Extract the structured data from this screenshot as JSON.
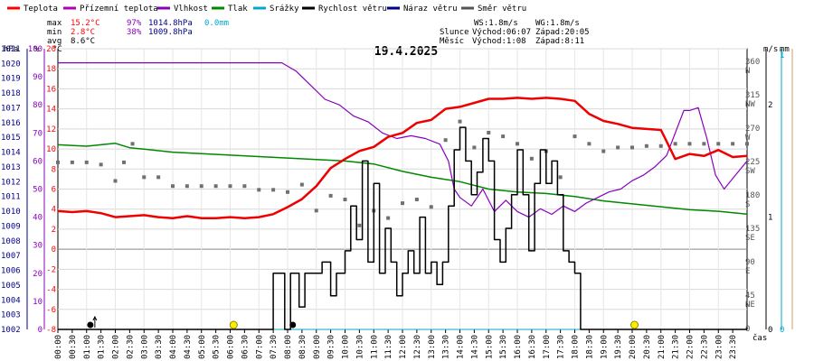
{
  "chart_data": {
    "type": "line",
    "title": "19.4.2025",
    "legend": [
      {
        "name": "Teplota",
        "color": "#ff0000"
      },
      {
        "name": "Přízemní teplota",
        "color": "#b000b0"
      },
      {
        "name": "Vlhkost",
        "color": "#8800bb"
      },
      {
        "name": "Tlak",
        "color": "#008800"
      },
      {
        "name": "Srážky",
        "color": "#00aacc"
      },
      {
        "name": "Rychlost větru",
        "color": "#000000"
      },
      {
        "name": "Náraz větru",
        "color": "#000088"
      },
      {
        "name": "Směr větru",
        "color": "#555555"
      }
    ],
    "stats": {
      "rows": [
        {
          "label": "max",
          "temp": "15.2°C",
          "hum": "97%",
          "press": "1014.8hPa",
          "rain": "0.0mm"
        },
        {
          "label": "min",
          "temp": "2.8°C",
          "hum": "38%",
          "press": "1009.8hPa"
        },
        {
          "label": "avg",
          "temp": "8.6°C"
        }
      ],
      "ws": "WS:1.8m/s",
      "wg": "WG:1.8m/s",
      "sun": {
        "label": "Slunce",
        "rise": "Východ:06:07",
        "set": "Západ:20:05"
      },
      "moon": {
        "label": "Měsíc",
        "rise": "Východ:1:08",
        "set": "Západ:8:11"
      }
    },
    "axes": {
      "hpa": {
        "unit": "hPa",
        "min": 1002,
        "max": 1021,
        "ticks": [
          "1021",
          "1020",
          "1019",
          "1018",
          "1017",
          "1016",
          "1015",
          "1014",
          "1013",
          "1012",
          "1011",
          "1010",
          "1009",
          "1008",
          "1007",
          "1006",
          "1005",
          "1004",
          "1003",
          "1002"
        ]
      },
      "pct": {
        "unit": "%",
        "min": 0,
        "max": 100,
        "ticks": [
          "100",
          "90",
          "80",
          "70",
          "60",
          "50",
          "40",
          "30",
          "20",
          "10",
          "0"
        ]
      },
      "temp": {
        "unit": "°C",
        "min": -8,
        "max": 20,
        "ticks": [
          "20",
          "18",
          "16",
          "14",
          "12",
          "10",
          "8",
          "6",
          "4",
          "2",
          "0",
          "-2",
          "-4",
          "-6",
          "-8"
        ]
      },
      "dir": {
        "unit": "°",
        "ticks": [
          {
            "deg": 360,
            "label": "N"
          },
          {
            "deg": 315,
            "label": "NW"
          },
          {
            "deg": 270,
            "label": "W"
          },
          {
            "deg": 225,
            "label": "SW"
          },
          {
            "deg": 180,
            "label": "S"
          },
          {
            "deg": 135,
            "label": "SE"
          },
          {
            "deg": 90,
            "label": "E"
          },
          {
            "deg": 45,
            "label": "NE"
          },
          {
            "deg": 0,
            "label": ""
          }
        ]
      },
      "ms": {
        "unit": "m/s",
        "min": 0,
        "max": 2.5,
        "ticks": [
          "2",
          "1",
          "0"
        ]
      },
      "mm": {
        "unit": "mm",
        "ticks": [
          "1",
          "0"
        ]
      },
      "x": {
        "label": "čas",
        "ticks": [
          "00:00",
          "00:30",
          "01:00",
          "01:30",
          "02:00",
          "02:30",
          "03:00",
          "03:30",
          "04:00",
          "04:30",
          "05:00",
          "05:30",
          "06:00",
          "06:30",
          "07:00",
          "07:30",
          "08:00",
          "08:30",
          "09:00",
          "09:30",
          "10:00",
          "10:30",
          "11:00",
          "11:30",
          "12:00",
          "12:30",
          "13:00",
          "13:30",
          "14:00",
          "14:30",
          "15:00",
          "15:30",
          "16:00",
          "16:30",
          "17:00",
          "17:30",
          "18:00",
          "18:30",
          "19:00",
          "19:30",
          "20:00",
          "20:30",
          "21:00",
          "21:30",
          "22:00",
          "22:30",
          "23:00",
          "23:30"
        ]
      }
    },
    "series": {
      "temperature_c": [
        [
          0,
          3.8
        ],
        [
          0.5,
          3.7
        ],
        [
          1,
          3.8
        ],
        [
          1.5,
          3.6
        ],
        [
          2,
          3.2
        ],
        [
          2.5,
          3.3
        ],
        [
          3,
          3.4
        ],
        [
          3.5,
          3.2
        ],
        [
          4,
          3.1
        ],
        [
          4.5,
          3.3
        ],
        [
          5,
          3.1
        ],
        [
          5.5,
          3.1
        ],
        [
          6,
          3.2
        ],
        [
          6.5,
          3.1
        ],
        [
          7,
          3.2
        ],
        [
          7.5,
          3.5
        ],
        [
          8,
          4.2
        ],
        [
          8.5,
          5.0
        ],
        [
          9,
          6.3
        ],
        [
          9.5,
          8.1
        ],
        [
          10,
          9.0
        ],
        [
          10.5,
          9.8
        ],
        [
          11,
          10.2
        ],
        [
          11.5,
          11.2
        ],
        [
          12,
          11.6
        ],
        [
          12.5,
          12.6
        ],
        [
          13,
          12.9
        ],
        [
          13.5,
          14.0
        ],
        [
          14,
          14.2
        ],
        [
          14.5,
          14.6
        ],
        [
          15,
          15.0
        ],
        [
          15.5,
          15.0
        ],
        [
          16,
          15.1
        ],
        [
          16.5,
          15.0
        ],
        [
          17,
          15.1
        ],
        [
          17.5,
          15.0
        ],
        [
          18,
          14.8
        ],
        [
          18.5,
          13.5
        ],
        [
          19,
          12.8
        ],
        [
          19.5,
          12.5
        ],
        [
          20,
          12.1
        ],
        [
          20.5,
          12.0
        ],
        [
          21,
          11.9
        ],
        [
          21.5,
          9.0
        ],
        [
          22,
          9.5
        ],
        [
          22.5,
          9.3
        ],
        [
          23,
          9.9
        ],
        [
          23.5,
          9.2
        ],
        [
          24,
          9.3
        ]
      ],
      "humidity_pct": [
        [
          0,
          95
        ],
        [
          1,
          95
        ],
        [
          2,
          95
        ],
        [
          3,
          95
        ],
        [
          4,
          95
        ],
        [
          5,
          95
        ],
        [
          6,
          95
        ],
        [
          7,
          95
        ],
        [
          7.8,
          95
        ],
        [
          8.3,
          92
        ],
        [
          8.8,
          87
        ],
        [
          9.3,
          82
        ],
        [
          9.8,
          80
        ],
        [
          10.3,
          76
        ],
        [
          10.8,
          74
        ],
        [
          11.3,
          70
        ],
        [
          11.8,
          68
        ],
        [
          12.3,
          69
        ],
        [
          12.8,
          68
        ],
        [
          13.3,
          66
        ],
        [
          13.6,
          60
        ],
        [
          13.8,
          50
        ],
        [
          14,
          47
        ],
        [
          14.4,
          44
        ],
        [
          14.8,
          50
        ],
        [
          15.2,
          42
        ],
        [
          15.6,
          46
        ],
        [
          16,
          42
        ],
        [
          16.4,
          40
        ],
        [
          16.8,
          43
        ],
        [
          17.2,
          41
        ],
        [
          17.6,
          44
        ],
        [
          18,
          42
        ],
        [
          18.4,
          45
        ],
        [
          18.8,
          47
        ],
        [
          19.2,
          49
        ],
        [
          19.6,
          50
        ],
        [
          20,
          53
        ],
        [
          20.4,
          55
        ],
        [
          20.8,
          58
        ],
        [
          21.2,
          62
        ],
        [
          21.5,
          70
        ],
        [
          21.8,
          78
        ],
        [
          22,
          78
        ],
        [
          22.3,
          79
        ],
        [
          22.6,
          68
        ],
        [
          22.9,
          55
        ],
        [
          23.2,
          50
        ],
        [
          23.6,
          55
        ],
        [
          24,
          60
        ]
      ],
      "pressure_hpa": [
        [
          0,
          1014.5
        ],
        [
          1,
          1014.4
        ],
        [
          2,
          1014.6
        ],
        [
          2.5,
          1014.3
        ],
        [
          3,
          1014.2
        ],
        [
          4,
          1014.0
        ],
        [
          5,
          1013.9
        ],
        [
          6,
          1013.8
        ],
        [
          7,
          1013.7
        ],
        [
          8,
          1013.6
        ],
        [
          9,
          1013.5
        ],
        [
          10,
          1013.4
        ],
        [
          11,
          1013.2
        ],
        [
          12,
          1012.7
        ],
        [
          13,
          1012.3
        ],
        [
          14,
          1012.0
        ],
        [
          15,
          1011.5
        ],
        [
          16,
          1011.3
        ],
        [
          17,
          1011.2
        ],
        [
          18,
          1011.0
        ],
        [
          19,
          1010.7
        ],
        [
          20,
          1010.5
        ],
        [
          21,
          1010.3
        ],
        [
          22,
          1010.1
        ],
        [
          23,
          1010.0
        ],
        [
          24,
          1009.8
        ]
      ],
      "wind_speed_ms": [
        [
          0,
          0
        ],
        [
          7.4,
          0
        ],
        [
          7.5,
          0.5
        ],
        [
          7.8,
          0.5
        ],
        [
          7.9,
          0
        ],
        [
          8.1,
          0.5
        ],
        [
          8.4,
          0.2
        ],
        [
          8.6,
          0.5
        ],
        [
          9,
          0.5
        ],
        [
          9.2,
          0.6
        ],
        [
          9.5,
          0.3
        ],
        [
          9.7,
          0.5
        ],
        [
          10,
          0.7
        ],
        [
          10.2,
          1.1
        ],
        [
          10.4,
          0.8
        ],
        [
          10.6,
          1.5
        ],
        [
          10.8,
          0.6
        ],
        [
          11,
          1.3
        ],
        [
          11.2,
          0.5
        ],
        [
          11.4,
          0.9
        ],
        [
          11.6,
          0.6
        ],
        [
          11.8,
          0.3
        ],
        [
          12,
          0.5
        ],
        [
          12.2,
          0.7
        ],
        [
          12.4,
          0.5
        ],
        [
          12.6,
          1.0
        ],
        [
          12.8,
          0.5
        ],
        [
          13,
          0.6
        ],
        [
          13.2,
          0.4
        ],
        [
          13.4,
          0.6
        ],
        [
          13.6,
          1.1
        ],
        [
          13.8,
          1.6
        ],
        [
          14,
          1.8
        ],
        [
          14.2,
          1.5
        ],
        [
          14.4,
          1.2
        ],
        [
          14.6,
          1.4
        ],
        [
          14.8,
          1.7
        ],
        [
          15,
          1.5
        ],
        [
          15.2,
          0.8
        ],
        [
          15.4,
          0.6
        ],
        [
          15.6,
          0.9
        ],
        [
          15.8,
          1.2
        ],
        [
          16,
          1.6
        ],
        [
          16.2,
          1.2
        ],
        [
          16.4,
          0.7
        ],
        [
          16.6,
          1.3
        ],
        [
          16.8,
          1.6
        ],
        [
          17,
          1.3
        ],
        [
          17.2,
          1.5
        ],
        [
          17.4,
          1.2
        ],
        [
          17.6,
          0.7
        ],
        [
          17.8,
          0.6
        ],
        [
          18,
          0.5
        ],
        [
          18.2,
          0
        ],
        [
          24,
          0
        ]
      ],
      "wind_direction_deg": [
        [
          0,
          225
        ],
        [
          0.5,
          225
        ],
        [
          1,
          225
        ],
        [
          1.5,
          222
        ],
        [
          2,
          200
        ],
        [
          2.3,
          225
        ],
        [
          2.6,
          250
        ],
        [
          3,
          205
        ],
        [
          3.5,
          205
        ],
        [
          4,
          193
        ],
        [
          4.5,
          193
        ],
        [
          5,
          193
        ],
        [
          5.5,
          193
        ],
        [
          6,
          193
        ],
        [
          6.5,
          193
        ],
        [
          7,
          188
        ],
        [
          7.5,
          188
        ],
        [
          8,
          185
        ],
        [
          8.5,
          195
        ],
        [
          9,
          160
        ],
        [
          9.5,
          180
        ],
        [
          10,
          175
        ],
        [
          10.5,
          140
        ],
        [
          11,
          160
        ],
        [
          11.5,
          150
        ],
        [
          12,
          170
        ],
        [
          12.5,
          175
        ],
        [
          13,
          165
        ],
        [
          13.5,
          255
        ],
        [
          14,
          280
        ],
        [
          14.5,
          245
        ],
        [
          15,
          265
        ],
        [
          15.5,
          260
        ],
        [
          16,
          250
        ],
        [
          16.5,
          230
        ],
        [
          17,
          240
        ],
        [
          17.5,
          205
        ],
        [
          18,
          260
        ],
        [
          18.5,
          250
        ],
        [
          19,
          240
        ],
        [
          19.5,
          245
        ],
        [
          20,
          245
        ],
        [
          20.5,
          247
        ],
        [
          21,
          247
        ],
        [
          21.5,
          250
        ],
        [
          22,
          250
        ],
        [
          22.5,
          250
        ],
        [
          23,
          250
        ],
        [
          23.5,
          250
        ],
        [
          24,
          250
        ]
      ],
      "rain_mm": [
        [
          0,
          0
        ],
        [
          24,
          0
        ]
      ],
      "markers": [
        {
          "type": "moonrise",
          "time": 1.13
        },
        {
          "type": "sunrise",
          "time": 6.12
        },
        {
          "type": "moonset",
          "time": 8.18
        },
        {
          "type": "sunset",
          "time": 20.08
        }
      ]
    }
  }
}
